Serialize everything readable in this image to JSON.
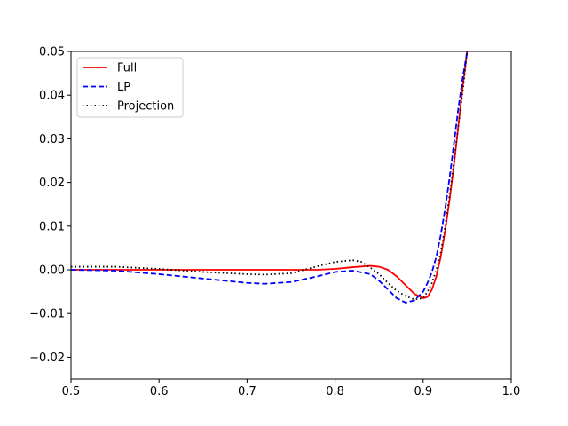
{
  "chart_data": {
    "type": "line",
    "title": "",
    "xlabel": "",
    "ylabel": "",
    "xlim": [
      0.5,
      1.0
    ],
    "ylim": [
      -0.025,
      0.05
    ],
    "x_ticks": [
      0.5,
      0.6,
      0.7,
      0.8,
      0.9,
      1.0
    ],
    "x_tick_labels": [
      "0.5",
      "0.6",
      "0.7",
      "0.8",
      "0.9",
      "1.0"
    ],
    "y_ticks": [
      -0.02,
      -0.01,
      0.0,
      0.01,
      0.02,
      0.03,
      0.04,
      0.05
    ],
    "y_tick_labels": [
      "−0.02",
      "−0.01",
      "0.00",
      "0.01",
      "0.02",
      "0.03",
      "0.04",
      "0.05"
    ],
    "grid": false,
    "legend_position": "top-left",
    "series": [
      {
        "name": "Full",
        "color": "#ff0000",
        "line_style": "solid",
        "x": [
          0.5,
          0.55,
          0.6,
          0.65,
          0.7,
          0.75,
          0.78,
          0.8,
          0.82,
          0.84,
          0.85,
          0.86,
          0.87,
          0.88,
          0.89,
          0.9,
          0.905,
          0.91,
          0.915,
          0.92,
          0.925,
          0.93,
          0.935,
          0.94,
          0.945,
          0.95
        ],
        "y": [
          0.0,
          0.0,
          0.0,
          0.0,
          0.0,
          0.0,
          0.0,
          0.0002,
          0.0006,
          0.0009,
          0.0007,
          0.0,
          -0.0015,
          -0.0035,
          -0.0055,
          -0.0065,
          -0.0062,
          -0.0045,
          -0.0015,
          0.003,
          0.009,
          0.016,
          0.024,
          0.033,
          0.042,
          0.05
        ]
      },
      {
        "name": "LP",
        "color": "#0000ff",
        "line_style": "dashed",
        "x": [
          0.5,
          0.55,
          0.6,
          0.65,
          0.7,
          0.72,
          0.75,
          0.78,
          0.8,
          0.82,
          0.84,
          0.85,
          0.86,
          0.87,
          0.88,
          0.89,
          0.9,
          0.905,
          0.91,
          0.915,
          0.92,
          0.925,
          0.93,
          0.935,
          0.94,
          0.945,
          0.95
        ],
        "y": [
          0.0,
          -0.0002,
          -0.001,
          -0.002,
          -0.003,
          -0.0032,
          -0.0028,
          -0.0015,
          -0.0005,
          -0.0002,
          -0.001,
          -0.0025,
          -0.0045,
          -0.0065,
          -0.0075,
          -0.007,
          -0.005,
          -0.003,
          -0.0005,
          0.003,
          0.008,
          0.014,
          0.021,
          0.029,
          0.037,
          0.044,
          0.05
        ]
      },
      {
        "name": "Projection",
        "color": "#000000",
        "line_style": "dotted",
        "x": [
          0.5,
          0.55,
          0.6,
          0.65,
          0.7,
          0.72,
          0.75,
          0.78,
          0.8,
          0.82,
          0.83,
          0.84,
          0.85,
          0.86,
          0.87,
          0.88,
          0.89,
          0.9,
          0.905,
          0.91,
          0.915,
          0.92,
          0.925,
          0.93,
          0.935,
          0.94,
          0.945,
          0.95
        ],
        "y": [
          0.0007,
          0.0007,
          0.0002,
          -0.0005,
          -0.001,
          -0.0011,
          -0.0008,
          0.0008,
          0.0018,
          0.0022,
          0.0018,
          0.0005,
          -0.001,
          -0.003,
          -0.0048,
          -0.006,
          -0.0068,
          -0.0065,
          -0.005,
          -0.003,
          0.0,
          0.004,
          0.01,
          0.017,
          0.025,
          0.033,
          0.041,
          0.05
        ]
      }
    ]
  }
}
